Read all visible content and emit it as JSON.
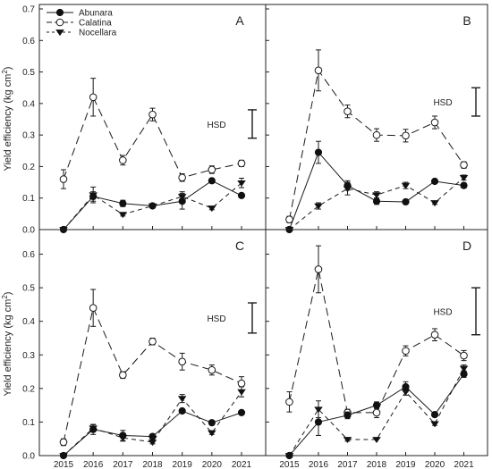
{
  "figure": {
    "ylabel_main": "Yield efficiency (kg cm",
    "ylabel_sup": "2",
    "ylabel_close": ")",
    "legend": [
      {
        "name": "Abunara",
        "marker": "filled-circle",
        "dash": "solid"
      },
      {
        "name": "Calatina",
        "marker": "open-circle",
        "dash": "long-dash"
      },
      {
        "name": "Nocellara",
        "marker": "filled-triangle-down",
        "dash": "short-dash"
      }
    ],
    "y_ticks": [
      "0.0",
      "0.1",
      "0.2",
      "0.3",
      "0.4",
      "0.5",
      "0.6",
      "0.7"
    ],
    "y_ticks_bottom": [
      "0.0",
      "0.1",
      "0.2",
      "0.3",
      "0.4",
      "0.5",
      "0.6"
    ],
    "x_ticks": [
      "2015",
      "2016",
      "2017",
      "2018",
      "2019",
      "2020",
      "2021"
    ],
    "hsd_label": "HSD",
    "colors": {
      "axis": "#222222",
      "line": "#1a1a1a",
      "marker_fill": "#111111",
      "open_fill": "#ffffff"
    }
  },
  "chart_data": [
    {
      "panel": "A",
      "type": "line",
      "x": [
        2015,
        2016,
        2017,
        2018,
        2019,
        2020,
        2021
      ],
      "ylim": [
        0,
        0.7
      ],
      "hsd": [
        0.29,
        0.38
      ],
      "series": [
        {
          "name": "Abunara",
          "values": [
            0.0,
            0.105,
            0.083,
            0.075,
            0.09,
            0.155,
            0.108
          ],
          "errors": [
            0.003,
            0.015,
            0.01,
            0.005,
            0.025,
            0.005,
            0.005
          ]
        },
        {
          "name": "Calatina",
          "values": [
            0.16,
            0.42,
            0.22,
            0.365,
            0.165,
            0.19,
            0.21
          ],
          "errors": [
            0.03,
            0.06,
            0.015,
            0.02,
            0.012,
            0.012,
            0.01
          ]
        },
        {
          "name": "Nocellara",
          "values": [
            0.0,
            0.11,
            0.048,
            0.075,
            0.105,
            0.068,
            0.148
          ],
          "errors": [
            0.003,
            0.025,
            0.005,
            0.005,
            0.015,
            0.005,
            0.015
          ]
        }
      ]
    },
    {
      "panel": "B",
      "type": "line",
      "x": [
        2015,
        2016,
        2017,
        2018,
        2019,
        2020,
        2021
      ],
      "ylim": [
        0,
        0.7
      ],
      "hsd": [
        0.36,
        0.45
      ],
      "series": [
        {
          "name": "Abunara",
          "values": [
            0.0,
            0.245,
            0.14,
            0.09,
            0.088,
            0.153,
            0.14
          ],
          "errors": [
            0.003,
            0.035,
            0.015,
            0.01,
            0.005,
            0.005,
            0.008
          ]
        },
        {
          "name": "Calatina",
          "values": [
            0.032,
            0.505,
            0.375,
            0.3,
            0.298,
            0.34,
            0.205
          ],
          "errors": [
            0.01,
            0.065,
            0.02,
            0.02,
            0.02,
            0.02,
            0.01
          ]
        },
        {
          "name": "Nocellara",
          "values": [
            0.0,
            0.075,
            0.13,
            0.11,
            0.14,
            0.085,
            0.165
          ],
          "errors": [
            0.003,
            0.01,
            0.02,
            0.01,
            0.01,
            0.005,
            0.008
          ]
        }
      ]
    },
    {
      "panel": "C",
      "type": "line",
      "x": [
        2015,
        2016,
        2017,
        2018,
        2019,
        2020,
        2021
      ],
      "ylim": [
        0,
        0.66
      ],
      "hsd": [
        0.365,
        0.455
      ],
      "series": [
        {
          "name": "Abunara",
          "values": [
            0.0,
            0.078,
            0.06,
            0.057,
            0.133,
            0.098,
            0.128
          ],
          "errors": [
            0.003,
            0.015,
            0.015,
            0.005,
            0.005,
            0.005,
            0.005
          ]
        },
        {
          "name": "Calatina",
          "values": [
            0.04,
            0.44,
            0.24,
            0.34,
            0.28,
            0.255,
            0.215
          ],
          "errors": [
            0.01,
            0.055,
            0.01,
            0.01,
            0.025,
            0.015,
            0.02
          ]
        },
        {
          "name": "Nocellara",
          "values": [
            0.0,
            0.082,
            0.053,
            0.04,
            0.17,
            0.068,
            0.19
          ],
          "errors": [
            0.003,
            0.01,
            0.01,
            0.005,
            0.012,
            0.005,
            0.015
          ]
        }
      ]
    },
    {
      "panel": "D",
      "type": "line",
      "x": [
        2015,
        2016,
        2017,
        2018,
        2019,
        2020,
        2021
      ],
      "ylim": [
        0,
        0.66
      ],
      "hsd": [
        0.36,
        0.5
      ],
      "series": [
        {
          "name": "Abunara",
          "values": [
            0.0,
            0.1,
            0.12,
            0.15,
            0.205,
            0.122,
            0.243
          ],
          "errors": [
            0.003,
            0.04,
            0.01,
            0.01,
            0.015,
            0.005,
            0.01
          ]
        },
        {
          "name": "Calatina",
          "values": [
            0.16,
            0.555,
            0.128,
            0.128,
            0.312,
            0.36,
            0.298
          ],
          "errors": [
            0.03,
            0.07,
            0.01,
            0.015,
            0.015,
            0.018,
            0.015
          ]
        },
        {
          "name": "Nocellara",
          "values": [
            0.0,
            0.138,
            0.048,
            0.048,
            0.19,
            0.095,
            0.26
          ],
          "errors": [
            0.003,
            0.025,
            0.005,
            0.003,
            0.01,
            0.005,
            0.01
          ]
        }
      ]
    }
  ]
}
